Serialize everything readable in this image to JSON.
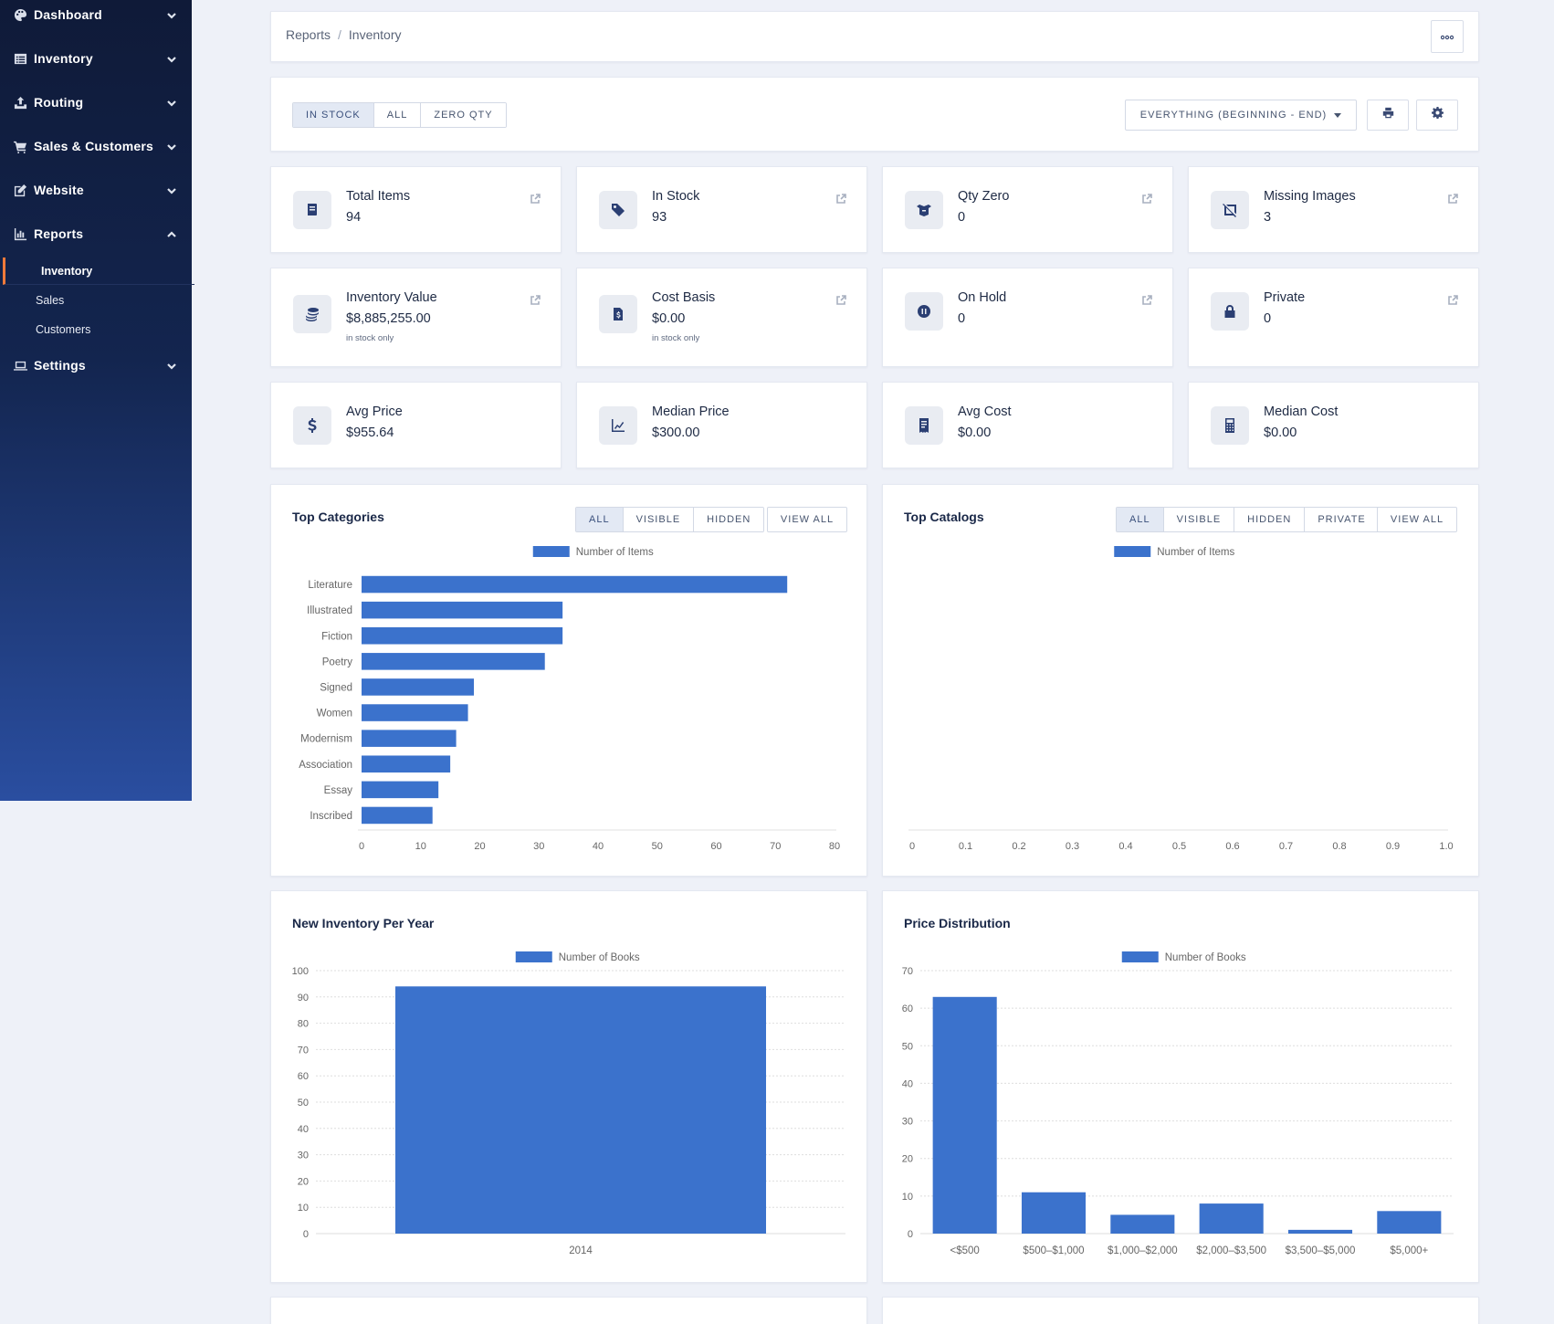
{
  "sidebar": {
    "items": [
      {
        "label": "Dashboard",
        "icon": "palette-icon"
      },
      {
        "label": "Inventory",
        "icon": "list-icon"
      },
      {
        "label": "Routing",
        "icon": "upload-icon"
      },
      {
        "label": "Sales & Customers",
        "icon": "cart-icon"
      },
      {
        "label": "Website",
        "icon": "edit-icon"
      },
      {
        "label": "Reports",
        "icon": "chart-icon"
      },
      {
        "label": "Settings",
        "icon": "laptop-icon"
      }
    ],
    "reports_sub": [
      {
        "label": "Inventory",
        "active": true
      },
      {
        "label": "Sales",
        "active": false
      },
      {
        "label": "Customers",
        "active": false
      }
    ]
  },
  "breadcrumb": {
    "root": "Reports",
    "sep": "/",
    "current": "Inventory"
  },
  "filters": {
    "stock_tabs": [
      "IN STOCK",
      "ALL",
      "ZERO QTY"
    ],
    "active_tab": "IN STOCK",
    "date_range": "EVERYTHING (BEGINNING - END)"
  },
  "stats": [
    {
      "label": "Total Items",
      "value": "94",
      "note": "",
      "icon": "book-icon"
    },
    {
      "label": "In Stock",
      "value": "93",
      "note": "",
      "icon": "tag-icon"
    },
    {
      "label": "Qty Zero",
      "value": "0",
      "note": "",
      "icon": "box-open-icon"
    },
    {
      "label": "Missing Images",
      "value": "3",
      "note": "",
      "icon": "image-slash-icon"
    },
    {
      "label": "Inventory Value",
      "value": "$8,885,255.00",
      "note": "in stock only",
      "icon": "coins-icon"
    },
    {
      "label": "Cost Basis",
      "value": "$0.00",
      "note": "in stock only",
      "icon": "invoice-dollar-icon"
    },
    {
      "label": "On Hold",
      "value": "0",
      "note": "",
      "icon": "pause-circle-icon"
    },
    {
      "label": "Private",
      "value": "0",
      "note": "",
      "icon": "lock-icon"
    },
    {
      "label": "Avg Price",
      "value": "$955.64",
      "note": "",
      "icon": "dollar-icon"
    },
    {
      "label": "Median Price",
      "value": "$300.00",
      "note": "",
      "icon": "line-chart-icon"
    },
    {
      "label": "Avg Cost",
      "value": "$0.00",
      "note": "",
      "icon": "receipt-icon"
    },
    {
      "label": "Median Cost",
      "value": "$0.00",
      "note": "",
      "icon": "calculator-icon"
    }
  ],
  "panels": {
    "top_categories": {
      "title": "Top Categories",
      "tabs": [
        "ALL",
        "VISIBLE",
        "HIDDEN"
      ],
      "active_tab": "ALL",
      "view_all": "VIEW ALL"
    },
    "top_catalogs": {
      "title": "Top Catalogs",
      "tabs": [
        "ALL",
        "VISIBLE",
        "HIDDEN",
        "PRIVATE"
      ],
      "active_tab": "ALL",
      "view_all": "VIEW ALL"
    },
    "new_inventory": {
      "title": "New Inventory Per Year"
    },
    "price_distribution": {
      "title": "Price Distribution"
    }
  },
  "colors": {
    "bar": "#3b72cc",
    "accent": "#f07a3a"
  },
  "chart_data": [
    {
      "type": "bar",
      "orientation": "horizontal",
      "categories": [
        "Literature",
        "Illustrated",
        "Fiction",
        "Poetry",
        "Signed",
        "Women",
        "Modernism",
        "Association",
        "Essay",
        "Inscribed"
      ],
      "series": [
        {
          "name": "Number of Items",
          "values": [
            72,
            34,
            34,
            31,
            19,
            18,
            16,
            15,
            13,
            12
          ]
        }
      ],
      "xlim": [
        0,
        80
      ],
      "x_ticks": [
        "0",
        "10",
        "20",
        "30",
        "40",
        "50",
        "60",
        "70",
        "80"
      ]
    },
    {
      "type": "bar",
      "orientation": "horizontal",
      "categories": [],
      "series": [
        {
          "name": "Number of Items",
          "values": []
        }
      ],
      "xlim": [
        0,
        1.0
      ],
      "x_ticks": [
        "0",
        "0.1",
        "0.2",
        "0.3",
        "0.4",
        "0.5",
        "0.6",
        "0.7",
        "0.8",
        "0.9",
        "1.0"
      ]
    },
    {
      "type": "bar",
      "categories": [
        "2014"
      ],
      "series": [
        {
          "name": "Number of Books",
          "values": [
            94
          ]
        }
      ],
      "ylim": [
        0,
        100
      ],
      "y_ticks": [
        "0",
        "10",
        "20",
        "30",
        "40",
        "50",
        "60",
        "70",
        "80",
        "90",
        "100"
      ],
      "grid": true
    },
    {
      "type": "bar",
      "categories": [
        "<$500",
        "$500–$1,000",
        "$1,000–$2,000",
        "$2,000–$3,500",
        "$3,500–$5,000",
        "$5,000+"
      ],
      "series": [
        {
          "name": "Number of Books",
          "values": [
            63,
            11,
            5,
            8,
            1,
            6
          ]
        }
      ],
      "ylim": [
        0,
        70
      ],
      "y_ticks": [
        "0",
        "10",
        "20",
        "30",
        "40",
        "50",
        "60",
        "70"
      ],
      "grid": true
    }
  ]
}
